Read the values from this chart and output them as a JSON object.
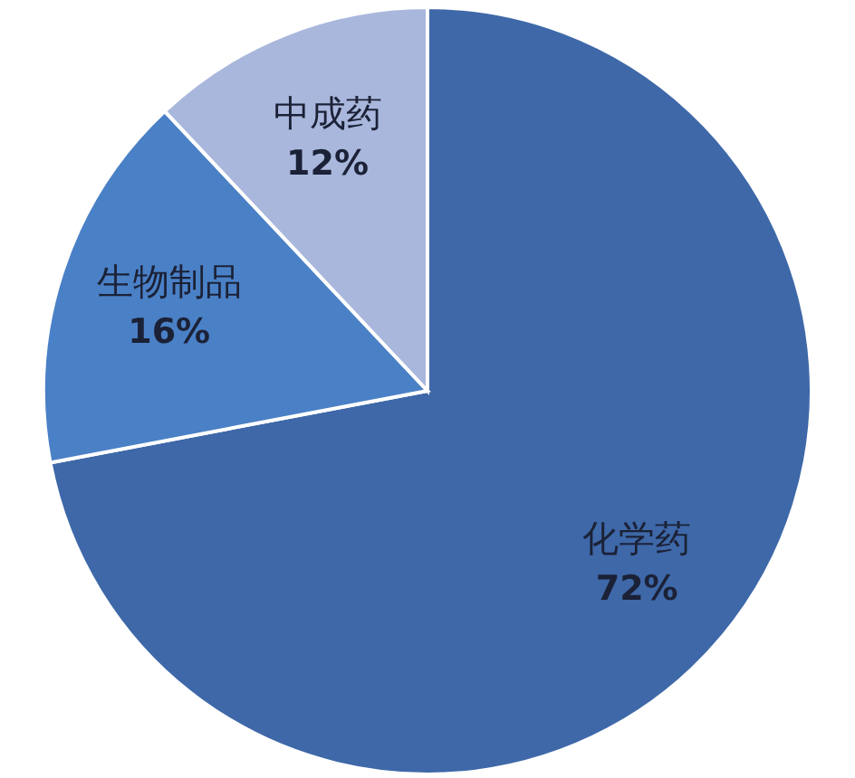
{
  "chart_data": {
    "type": "pie",
    "categories": [
      "化学药",
      "生物制品",
      "中成药"
    ],
    "values": [
      72,
      16,
      12
    ],
    "colors": [
      "#3e68a8",
      "#4a80c6",
      "#a9b7dc"
    ],
    "value_labels": [
      "72%",
      "16%",
      "12%"
    ],
    "legend": false
  }
}
